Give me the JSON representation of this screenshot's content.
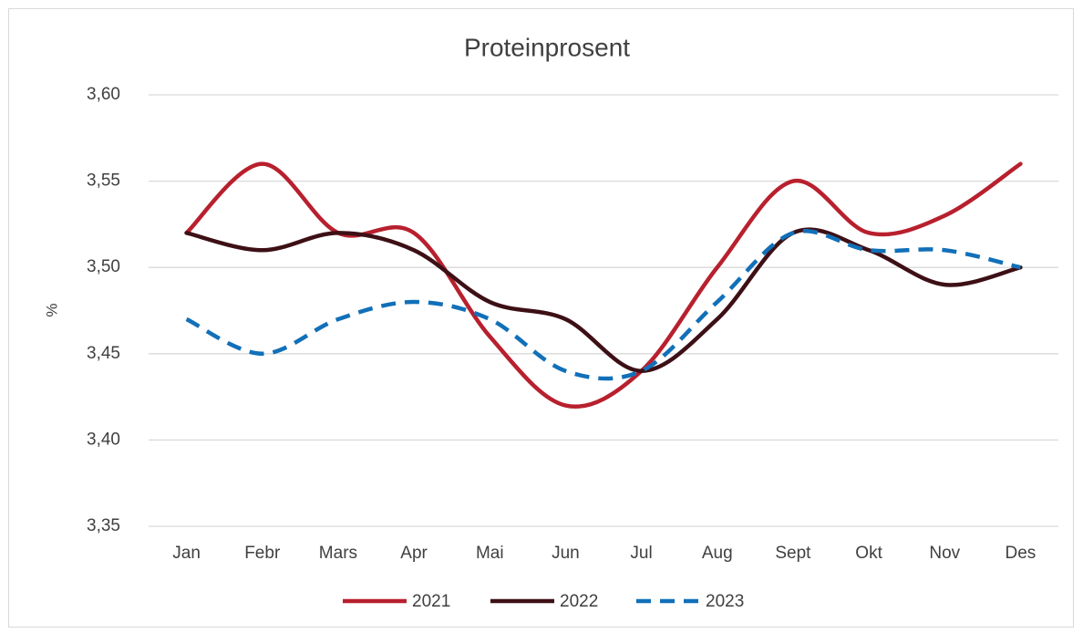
{
  "chart_data": {
    "type": "line",
    "title": "Proteinprosent",
    "y_label": "%",
    "categories": [
      "Jan",
      "Febr",
      "Mars",
      "Apr",
      "Mai",
      "Jun",
      "Jul",
      "Aug",
      "Sept",
      "Okt",
      "Nov",
      "Des"
    ],
    "series": [
      {
        "name": "2021",
        "color": "#b8202e",
        "dashed": false,
        "values": [
          3.52,
          3.56,
          3.52,
          3.52,
          3.46,
          3.42,
          3.44,
          3.5,
          3.55,
          3.52,
          3.53,
          3.56
        ]
      },
      {
        "name": "2022",
        "color": "#3d1016",
        "dashed": false,
        "values": [
          3.52,
          3.51,
          3.52,
          3.51,
          3.48,
          3.47,
          3.44,
          3.47,
          3.52,
          3.51,
          3.49,
          3.5
        ]
      },
      {
        "name": "2023",
        "color": "#1170b8",
        "dashed": true,
        "values": [
          3.47,
          3.45,
          3.47,
          3.48,
          3.47,
          3.44,
          3.44,
          3.48,
          3.52,
          3.51,
          3.51,
          3.5
        ]
      }
    ],
    "ylim": [
      3.35,
      3.6
    ],
    "yticks": [
      {
        "value": 3.35,
        "label": "3,35"
      },
      {
        "value": 3.4,
        "label": "3,40"
      },
      {
        "value": 3.45,
        "label": "3,45"
      },
      {
        "value": 3.5,
        "label": "3,50"
      },
      {
        "value": 3.55,
        "label": "3,55"
      },
      {
        "value": 3.6,
        "label": "3,60"
      }
    ],
    "grid": true,
    "legend": "bottom"
  }
}
